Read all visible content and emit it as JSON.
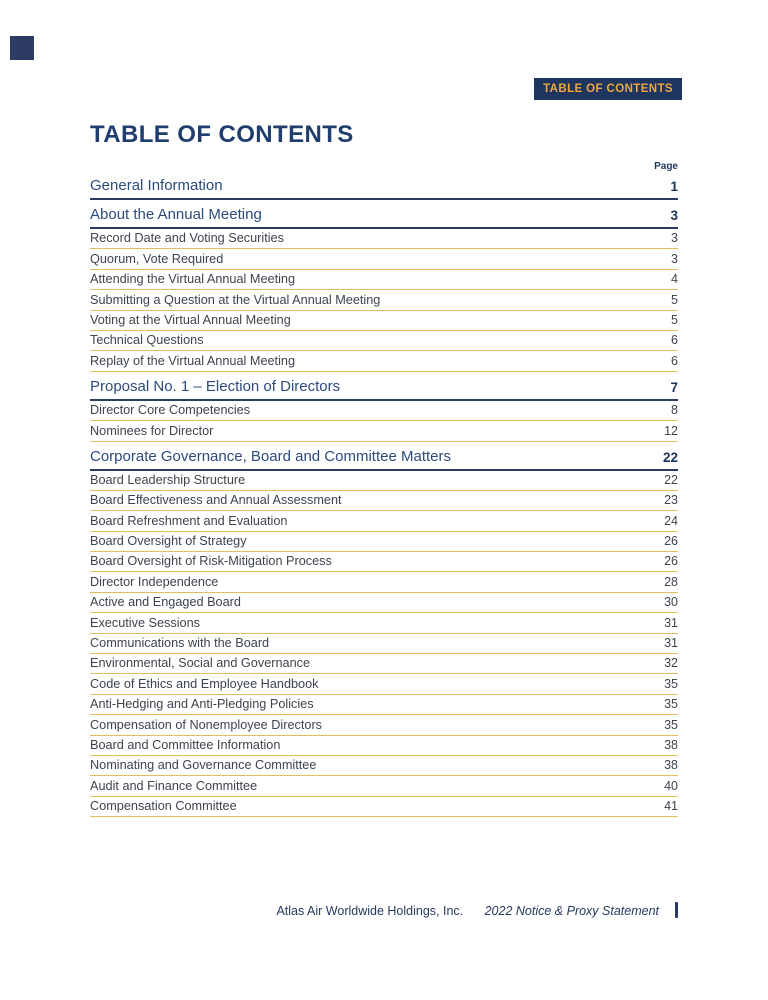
{
  "badge": {
    "label": "TABLE OF CONTENTS"
  },
  "header": {
    "title": "TABLE OF CONTENTS",
    "page_column_label": "Page"
  },
  "toc": {
    "entries": [
      {
        "label": "General Information",
        "page": "1",
        "level": "section"
      },
      {
        "label": "About the Annual Meeting",
        "page": "3",
        "level": "section"
      },
      {
        "label": "Record Date and Voting Securities",
        "page": "3",
        "level": "sub"
      },
      {
        "label": "Quorum, Vote Required",
        "page": "3",
        "level": "sub"
      },
      {
        "label": "Attending the Virtual Annual Meeting",
        "page": "4",
        "level": "sub"
      },
      {
        "label": "Submitting a Question at the Virtual Annual Meeting",
        "page": "5",
        "level": "sub"
      },
      {
        "label": "Voting at the Virtual Annual Meeting",
        "page": "5",
        "level": "sub"
      },
      {
        "label": "Technical Questions",
        "page": "6",
        "level": "sub"
      },
      {
        "label": "Replay of the Virtual Annual Meeting",
        "page": "6",
        "level": "sub"
      },
      {
        "label": "Proposal No. 1 – Election of Directors",
        "page": "7",
        "level": "section"
      },
      {
        "label": "Director Core Competencies",
        "page": "8",
        "level": "sub"
      },
      {
        "label": "Nominees for Director",
        "page": "12",
        "level": "sub"
      },
      {
        "label": "Corporate Governance, Board and Committee Matters",
        "page": "22",
        "level": "section"
      },
      {
        "label": "Board Leadership Structure",
        "page": "22",
        "level": "sub"
      },
      {
        "label": "Board Effectiveness and Annual Assessment",
        "page": "23",
        "level": "sub"
      },
      {
        "label": "Board Refreshment and Evaluation",
        "page": "24",
        "level": "sub"
      },
      {
        "label": "Board Oversight of Strategy",
        "page": "26",
        "level": "sub"
      },
      {
        "label": "Board Oversight of Risk-Mitigation Process",
        "page": "26",
        "level": "sub"
      },
      {
        "label": "Director Independence",
        "page": "28",
        "level": "sub"
      },
      {
        "label": "Active and Engaged Board",
        "page": "30",
        "level": "sub"
      },
      {
        "label": "Executive Sessions",
        "page": "31",
        "level": "sub"
      },
      {
        "label": "Communications with the Board",
        "page": "31",
        "level": "sub"
      },
      {
        "label": "Environmental, Social and Governance",
        "page": "32",
        "level": "sub"
      },
      {
        "label": "Code of Ethics and Employee Handbook",
        "page": "35",
        "level": "sub"
      },
      {
        "label": "Anti-Hedging and Anti-Pledging Policies",
        "page": "35",
        "level": "sub"
      },
      {
        "label": "Compensation of Nonemployee Directors",
        "page": "35",
        "level": "sub"
      },
      {
        "label": "Board and Committee Information",
        "page": "38",
        "level": "sub"
      },
      {
        "label": "Nominating and Governance Committee",
        "page": "38",
        "level": "sub"
      },
      {
        "label": "Audit and Finance Committee",
        "page": "40",
        "level": "sub"
      },
      {
        "label": "Compensation Committee",
        "page": "41",
        "level": "sub"
      }
    ]
  },
  "footer": {
    "company": "Atlas Air Worldwide Holdings, Inc.",
    "publication": "2022 Notice & Proxy Statement"
  },
  "theme": {
    "badge_bg": "#1e3560",
    "badge_text": "#efa73e",
    "navy_title": "#1f3d6d",
    "navy_heading": "#2c4b7c",
    "navy_line": "#2c3c63",
    "navy_number": "#1d3459",
    "gold_line": "#e8bb60",
    "sub_text": "#3e444e",
    "footer_text": "#263a60"
  }
}
